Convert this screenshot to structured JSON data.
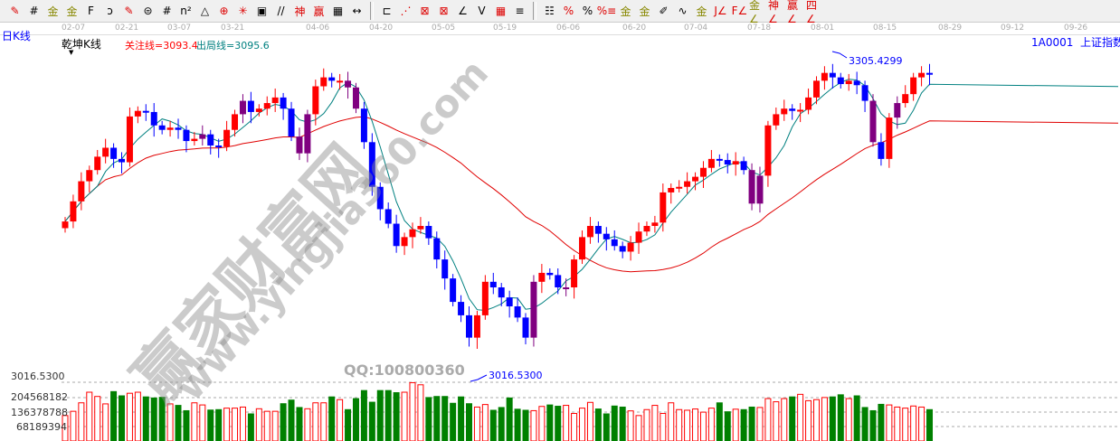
{
  "toolbar": {
    "icons": [
      {
        "name": "pen-icon",
        "ch": "✎",
        "c": "r"
      },
      {
        "name": "grid-icon",
        "ch": "#",
        "c": ""
      },
      {
        "name": "gold-icon",
        "ch": "金",
        "c": "g"
      },
      {
        "name": "gold2-icon",
        "ch": "金",
        "c": "g"
      },
      {
        "name": "f-icon",
        "ch": "F",
        "c": ""
      },
      {
        "name": "spiral-icon",
        "ch": "ↄ",
        "c": ""
      },
      {
        "name": "marker-icon",
        "ch": "✎",
        "c": "r"
      },
      {
        "name": "circle-grid-icon",
        "ch": "⊜",
        "c": ""
      },
      {
        "name": "lines-icon",
        "ch": "#",
        "c": ""
      },
      {
        "name": "n2-icon",
        "ch": "n²",
        "c": ""
      },
      {
        "name": "triangle-icon",
        "ch": "△",
        "c": ""
      },
      {
        "name": "target-icon",
        "ch": "⊕",
        "c": "r"
      },
      {
        "name": "web-icon",
        "ch": "✳",
        "c": "r"
      },
      {
        "name": "square-target-icon",
        "ch": "▣",
        "c": ""
      },
      {
        "name": "slash-icon",
        "ch": "//",
        "c": ""
      },
      {
        "name": "qian-icon",
        "ch": "神",
        "c": "r"
      },
      {
        "name": "ying-icon",
        "ch": "赢",
        "c": "r"
      },
      {
        "name": "ruler-icon",
        "ch": "▦",
        "c": ""
      },
      {
        "name": "measure-icon",
        "ch": "↔",
        "c": ""
      },
      {
        "sep": true
      },
      {
        "name": "box-icon",
        "ch": "⊏",
        "c": ""
      },
      {
        "name": "fan-icon",
        "ch": "⋰",
        "c": "r"
      },
      {
        "name": "fan-box-icon",
        "ch": "⊠",
        "c": "r"
      },
      {
        "name": "fan-box2-icon",
        "ch": "⊠",
        "c": "r"
      },
      {
        "name": "angle-icon",
        "ch": "∠",
        "c": ""
      },
      {
        "name": "wave-icon",
        "ch": "V",
        "c": ""
      },
      {
        "name": "grid-box-icon",
        "ch": "▦",
        "c": "r"
      },
      {
        "name": "parallel-icon",
        "ch": "≡",
        "c": ""
      },
      {
        "sep": true
      },
      {
        "name": "table-icon",
        "ch": "☷",
        "c": ""
      },
      {
        "name": "percent-line-icon",
        "ch": "%",
        "c": "r"
      },
      {
        "name": "percent-icon",
        "ch": "%",
        "c": ""
      },
      {
        "name": "percent-lines-icon",
        "ch": "%≡",
        "c": "r"
      },
      {
        "name": "gold-circle-icon",
        "ch": "金",
        "c": "g"
      },
      {
        "name": "gold-lines-icon",
        "ch": "金",
        "c": "g"
      },
      {
        "name": "brush-icon",
        "ch": "✐",
        "c": ""
      },
      {
        "name": "sine-icon",
        "ch": "∿",
        "c": ""
      },
      {
        "name": "gold-box-icon",
        "ch": "金",
        "c": "g"
      },
      {
        "name": "j-angle-icon",
        "ch": "J∠",
        "c": "r"
      },
      {
        "name": "f-angle-icon",
        "ch": "F∠",
        "c": "r"
      },
      {
        "name": "gold-angle-icon",
        "ch": "金∠",
        "c": "g"
      },
      {
        "name": "shen-angle-icon",
        "ch": "神∠",
        "c": "r"
      },
      {
        "name": "ying-angle-icon",
        "ch": "赢∠",
        "c": "r"
      },
      {
        "name": "four-angle-icon",
        "ch": "四∠",
        "c": "r"
      }
    ]
  },
  "dates": [
    "02-07",
    "02-21",
    "03-07",
    "03-21",
    "04-06",
    "04-20",
    "05-05",
    "05-19",
    "06-06",
    "06-20",
    "07-04",
    "07-18",
    "08-01",
    "08-15",
    "08-29",
    "09-12",
    "09-26"
  ],
  "period": "日K线",
  "indicator": "乾坤K线",
  "focus_line": "关注线=3093.4",
  "exit_line": "出局线=3095.6",
  "symbol": "1A0001  上证指数",
  "high_label": "3305.4299",
  "low_label": "3016.5300",
  "axis_labels": {
    "top": "3016.5300",
    "v1": "204568182",
    "v2": "136378788",
    "v3": "68189394"
  },
  "watermark": {
    "cn": "赢家财富网",
    "url": "www.yingjia360.com",
    "qq": "QQ:100800360"
  },
  "colors": {
    "up": "#ff0000",
    "down": "#0000ff",
    "signal": "#800080",
    "vol_down": "#008000",
    "ma_short": "#008080",
    "ma_long": "#e00000",
    "label": "#0000ff"
  },
  "chart_data": {
    "type": "candlestick",
    "price_high": 3305.4299,
    "price_low": 3016.53,
    "closes": [
      3154,
      3172,
      3190,
      3200,
      3212,
      3220,
      3210,
      3207,
      3248,
      3253,
      3252,
      3240,
      3236,
      3238,
      3236,
      3226,
      3228,
      3232,
      3222,
      3221,
      3236,
      3250,
      3262,
      3252,
      3255,
      3260,
      3265,
      3255,
      3230,
      3215,
      3250,
      3275,
      3283,
      3280,
      3280,
      3274,
      3255,
      3225,
      3185,
      3165,
      3152,
      3132,
      3140,
      3147,
      3150,
      3139,
      3120,
      3103,
      3082,
      3070,
      3050,
      3070,
      3100,
      3095,
      3086,
      3078,
      3068,
      3050,
      3100,
      3108,
      3106,
      3095,
      3095,
      3120,
      3140,
      3150,
      3143,
      3138,
      3132,
      3127,
      3135,
      3145,
      3150,
      3153,
      3180,
      3184,
      3185,
      3190,
      3194,
      3202,
      3210,
      3209,
      3205,
      3208,
      3200,
      3170,
      3195,
      3240,
      3250,
      3255,
      3253,
      3254,
      3265,
      3280,
      3287,
      3283,
      3277,
      3280,
      3276,
      3262,
      3225,
      3210,
      3247,
      3260,
      3268,
      3283,
      3287,
      3286
    ],
    "signal_indices": [
      17,
      22,
      29,
      30,
      35,
      36,
      58,
      62,
      85,
      86,
      100,
      103
    ],
    "volumes": [
      120,
      140,
      180,
      230,
      210,
      175,
      235,
      215,
      225,
      230,
      210,
      205,
      208,
      175,
      170,
      145,
      180,
      170,
      148,
      150,
      155,
      155,
      160,
      130,
      152,
      140,
      140,
      178,
      195,
      160,
      152,
      180,
      180,
      210,
      195,
      150,
      202,
      240,
      185,
      240,
      240,
      230,
      230,
      275,
      265,
      207,
      212,
      212,
      180,
      210,
      178,
      160,
      172,
      147,
      160,
      205,
      152,
      147,
      143,
      163,
      172,
      166,
      168,
      130,
      155,
      182,
      153,
      130,
      167,
      162,
      142,
      120,
      148,
      168,
      130,
      180,
      148,
      145,
      151,
      136,
      155,
      182,
      140,
      150,
      150,
      162,
      158,
      200,
      185,
      200,
      210,
      220,
      190,
      195,
      205,
      210,
      220,
      200,
      215,
      160,
      145,
      175,
      170,
      160,
      155,
      165,
      160,
      150
    ]
  }
}
